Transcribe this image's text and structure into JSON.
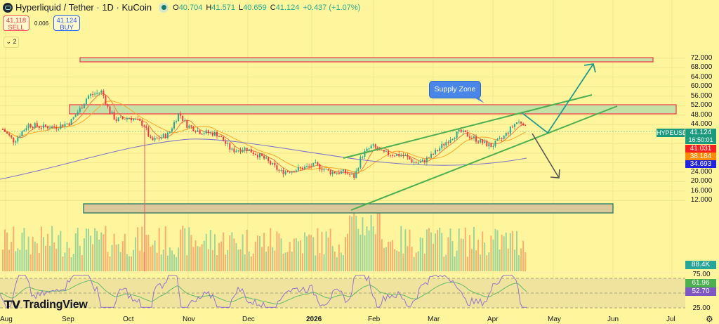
{
  "header": {
    "symbol_title": "Hyperliquid / Tether · 1D · KuCoin",
    "ohlc": {
      "open_label": "O",
      "open": "40.704",
      "high_label": "H",
      "high": "41.571",
      "low_label": "L",
      "low": "40.659",
      "close_label": "C",
      "close": "41.124",
      "change": "+0.437 (+1.07%)"
    },
    "sell": {
      "price": "41.118",
      "label": "SELL"
    },
    "spread": "0.006",
    "buy": {
      "price": "41.124",
      "label": "BUY"
    },
    "indicators_collapse": "2"
  },
  "price_axis": {
    "ticks": [
      "72.000",
      "68.000",
      "64.000",
      "60.000",
      "56.000",
      "52.000",
      "48.000",
      "44.000",
      "40.000",
      "36.000",
      "32.000",
      "28.000",
      "24.000",
      "20.000",
      "16.000",
      "12.000"
    ],
    "symbol_tag": "HYPEUSDT",
    "last_price": "41.124",
    "countdown": "16:50:01",
    "ma_fast": "41.031",
    "ma_mid": "38.184",
    "ma_slow": "34.693",
    "volume_tag": "88.4K"
  },
  "rsi_axis": {
    "ticks": [
      "75.00",
      "25.00"
    ],
    "rsi_value": "61.96",
    "rsi_ma_value": "52.70"
  },
  "annotations": {
    "callout": "Supply Zone"
  },
  "time_axis": {
    "labels": [
      "Aug",
      "Sep",
      "Oct",
      "Nov",
      "Dec",
      "2026",
      "Feb",
      "Mar",
      "Apr",
      "May",
      "Jun",
      "Jul"
    ]
  },
  "branding": {
    "logo_text": "TradingView"
  },
  "colors": {
    "background": "#fff59d",
    "up": "#22ab94",
    "down": "#f23645",
    "zone_fill": "#c5e1a5",
    "zone_border": "#f23645",
    "demand_fill": "#d9c99a",
    "demand_border": "#1b6b5e",
    "channel": "#4caf50",
    "arrow_up": "#1f9c8c",
    "arrow_down": "#555555",
    "ma_fast": "#f57c3a",
    "ma_mid": "#ffa726",
    "ma_slow": "#7e78c8",
    "rsi": "#9575cd",
    "rsi_ma": "#66bb6a"
  }
}
